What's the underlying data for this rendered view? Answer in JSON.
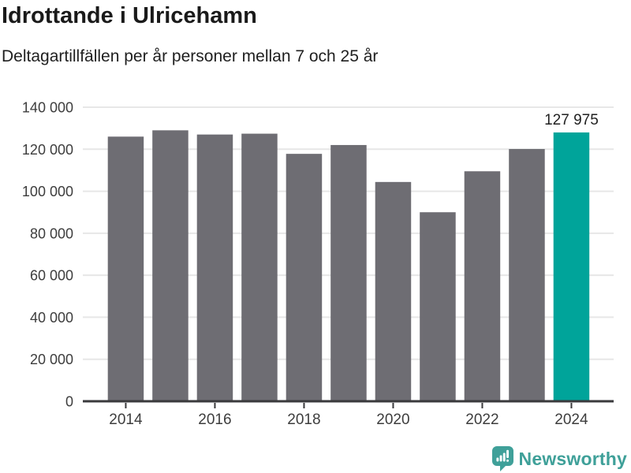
{
  "chart_data": {
    "type": "bar",
    "title": "Idrottande i Ulricehamn",
    "subtitle": "Deltagartillfällen per år personer mellan 7 och 25 år",
    "categories": [
      "2014",
      "2015",
      "2016",
      "2017",
      "2018",
      "2019",
      "2020",
      "2021",
      "2022",
      "2023",
      "2024"
    ],
    "values": [
      126000,
      129000,
      127000,
      127400,
      117800,
      122000,
      104400,
      90000,
      109500,
      120100,
      127975
    ],
    "highlight_index": 10,
    "annotation": {
      "index": 10,
      "label": "127 975"
    },
    "xtick_labels": [
      "2014",
      "2016",
      "2018",
      "2020",
      "2022",
      "2024"
    ],
    "xtick_indices": [
      0,
      2,
      4,
      6,
      8,
      10
    ],
    "ytick_values": [
      0,
      20000,
      40000,
      60000,
      80000,
      100000,
      120000,
      140000
    ],
    "ytick_labels": [
      "0",
      "20 000",
      "40 000",
      "60 000",
      "80 000",
      "100 000",
      "120 000",
      "140 000"
    ],
    "ylim": [
      0,
      140000
    ],
    "grid": "horizontal",
    "legend": "none",
    "colors": {
      "bar": "#6E6D73",
      "highlight": "#00A49A",
      "grid": "#E7E7E7",
      "axis": "#3A3A3C",
      "tick_text": "#3D3D3D",
      "annotation_text": "#1F1F1F"
    }
  },
  "footer": {
    "brand": "Newsworthy",
    "logo_color": "#3FA099"
  }
}
